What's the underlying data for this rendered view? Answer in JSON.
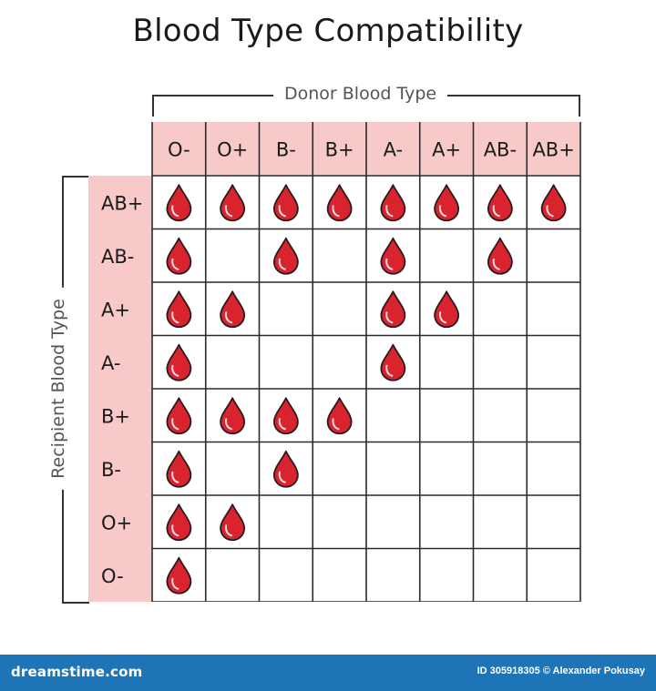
{
  "title": "Blood Type Compatibility",
  "donor_axis_label": "Donor Blood Type",
  "recipient_axis_label": "Recipient Blood Type",
  "donor_types": [
    "O-",
    "O+",
    "B-",
    "B+",
    "A-",
    "A+",
    "AB-",
    "AB+"
  ],
  "recipient_types": [
    "AB+",
    "AB-",
    "A+",
    "A-",
    "B+",
    "B-",
    "O+",
    "O-"
  ],
  "compatibility": [
    [
      1,
      1,
      1,
      1,
      1,
      1,
      1,
      1
    ],
    [
      1,
      0,
      1,
      0,
      1,
      0,
      1,
      0
    ],
    [
      1,
      1,
      0,
      0,
      1,
      1,
      0,
      0
    ],
    [
      1,
      0,
      0,
      0,
      1,
      0,
      0,
      0
    ],
    [
      1,
      1,
      1,
      1,
      0,
      0,
      0,
      0
    ],
    [
      1,
      0,
      1,
      0,
      0,
      0,
      0,
      0
    ],
    [
      1,
      1,
      0,
      0,
      0,
      0,
      0,
      0
    ],
    [
      1,
      0,
      0,
      0,
      0,
      0,
      0,
      0
    ]
  ],
  "colors": {
    "header_fill": "#f7c9c9",
    "drop_fill": "#d9242f",
    "drop_outline": "#2a1a1a",
    "grid_line": "#2a2a2a"
  },
  "icon": "blood-drop-icon",
  "footer": {
    "brand": "dreamstime.com",
    "credit": "ID 305918305 © Alexander Pokusay"
  }
}
